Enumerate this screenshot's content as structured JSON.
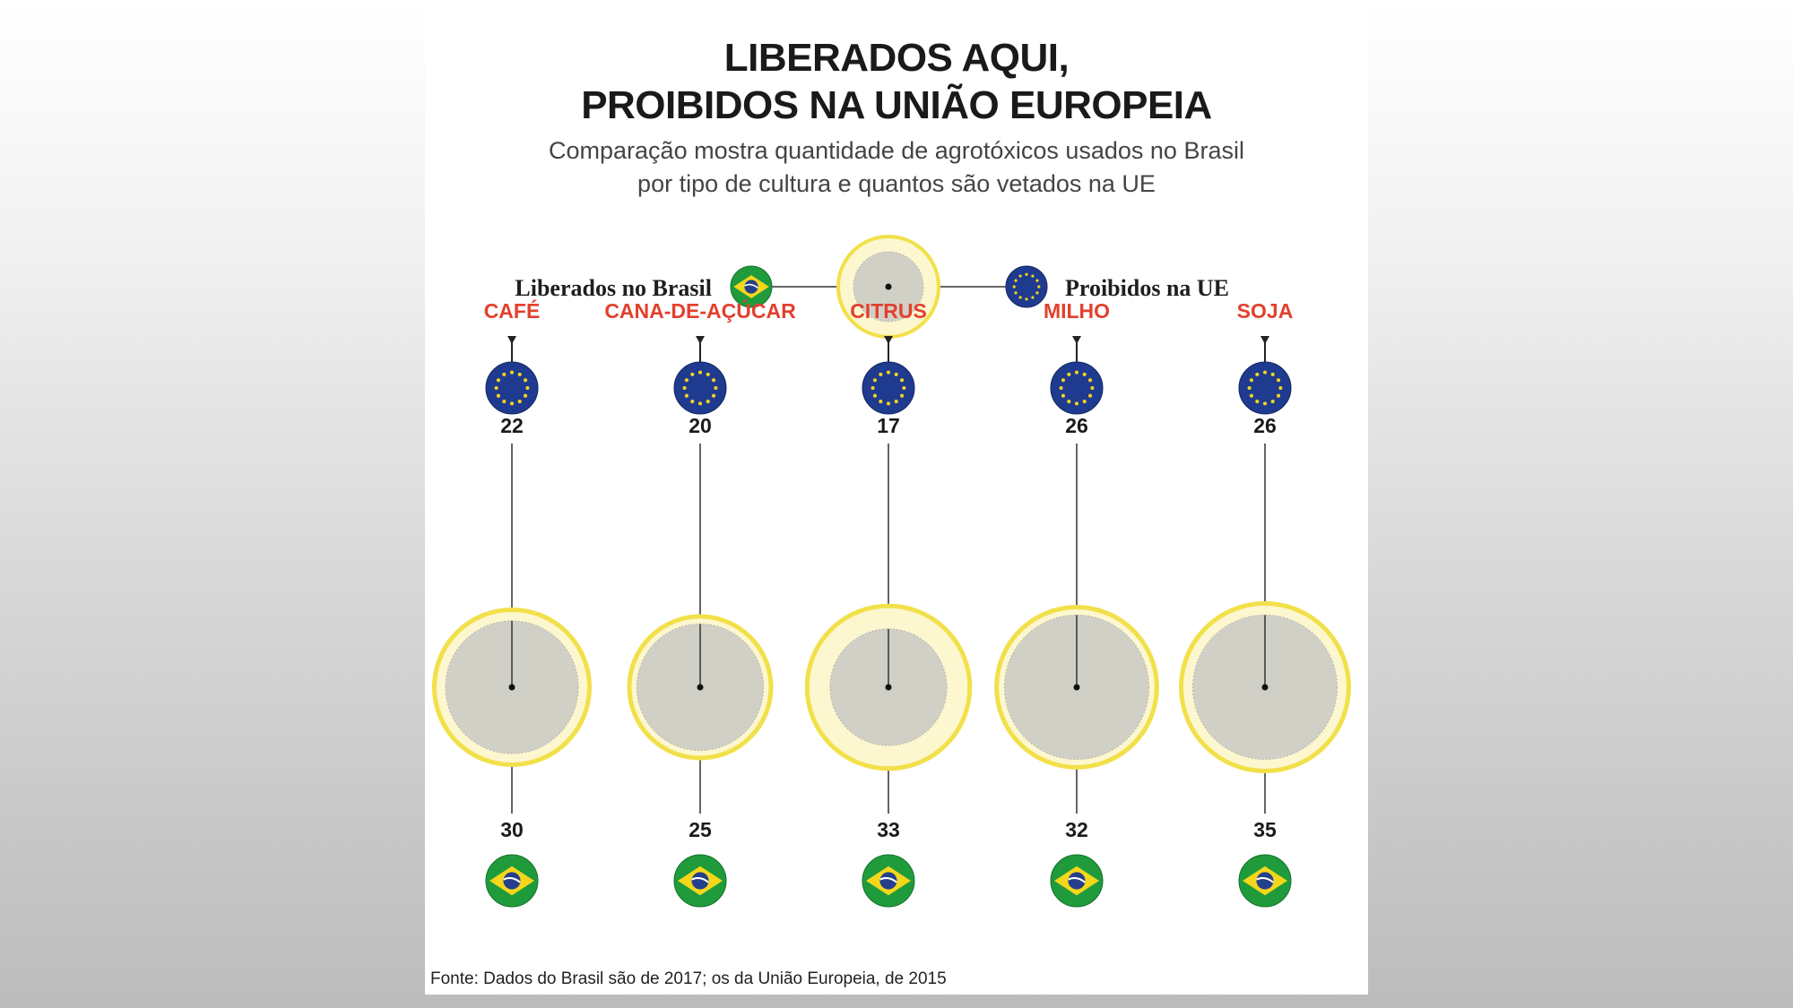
{
  "title": {
    "line1": "LIBERADOS AQUI,",
    "line2": "PROIBIDOS NA UNIÃO EUROPEIA"
  },
  "subtitle": {
    "line1": "Comparação mostra quantidade de agrotóxicos usados no Brasil",
    "line2": "por tipo de cultura e quantos são vetados na UE"
  },
  "legend": {
    "brazil_label": "Liberados no Brasil",
    "eu_label": "Proibidos na UE",
    "brazil_icon": "brazil-flag-icon",
    "eu_icon": "eu-flag-icon"
  },
  "colors": {
    "crop_label": "#e2402d",
    "outer_circle": "#fdf7d0",
    "outer_ring": "#f2e04a",
    "inner_circle": "#d1d0c6",
    "eu_blue": "#1f3b8f",
    "eu_star": "#f2d51f",
    "br_green": "#1f9b3c",
    "br_yellow": "#f4d71a",
    "br_blue": "#243f8c"
  },
  "chart_data": {
    "type": "bubble",
    "title": "LIBERADOS AQUI, PROIBIDOS NA UNIÃO EUROPEIA",
    "categories": [
      "CAFÉ",
      "CANA-DE-AÇÚCAR",
      "CITRUS",
      "MILHO",
      "SOJA"
    ],
    "series": [
      {
        "name": "Liberados no Brasil",
        "values": [
          30,
          25,
          33,
          32,
          35
        ]
      },
      {
        "name": "Proibidos na UE",
        "values": [
          22,
          20,
          17,
          26,
          26
        ]
      }
    ]
  },
  "footer": "Fonte: Dados do Brasil são de 2017; os da União Europeia, de 2015"
}
